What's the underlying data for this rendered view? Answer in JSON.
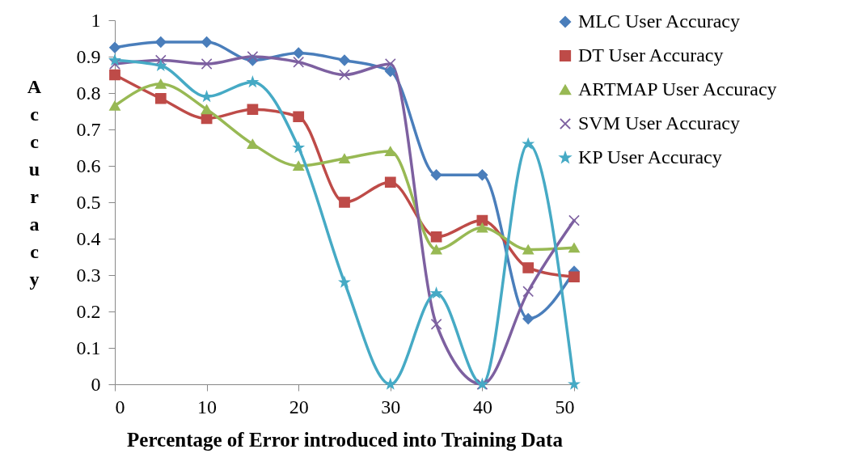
{
  "chart_data": {
    "type": "line",
    "xlabel": "Percentage of Error introduced into Training Data",
    "ylabel": "Accuracy",
    "x": [
      0,
      5,
      10,
      15,
      20,
      25,
      30,
      35,
      40,
      45,
      50
    ],
    "xlim": [
      0,
      50
    ],
    "xticks": [
      0,
      10,
      20,
      30,
      40,
      50
    ],
    "ylim": [
      0,
      1
    ],
    "yticks": [
      0,
      0.1,
      0.2,
      0.3,
      0.4,
      0.5,
      0.6,
      0.7,
      0.8,
      0.9,
      1
    ],
    "grid": false,
    "legend": "top right",
    "series": [
      {
        "name": "MLC User Accuracy",
        "color": "#4a7ebb",
        "marker": "diamond",
        "values": [
          0.925,
          0.94,
          0.94,
          0.89,
          0.91,
          0.89,
          0.86,
          0.575,
          0.575,
          0.18,
          0.31
        ]
      },
      {
        "name": "DT User Accuracy",
        "color": "#be4b48",
        "marker": "square",
        "values": [
          0.85,
          0.785,
          0.73,
          0.755,
          0.735,
          0.5,
          0.555,
          0.405,
          0.45,
          0.32,
          0.295
        ]
      },
      {
        "name": "ARTMAP User Accuracy",
        "color": "#98b954",
        "marker": "triangle",
        "values": [
          0.765,
          0.825,
          0.755,
          0.66,
          0.6,
          0.62,
          0.64,
          0.37,
          0.43,
          0.37,
          0.375
        ]
      },
      {
        "name": "SVM User Accuracy",
        "color": "#7d60a0",
        "marker": "cross",
        "values": [
          0.88,
          0.89,
          0.88,
          0.9,
          0.885,
          0.85,
          0.88,
          0.165,
          0,
          0.255,
          0.45
        ]
      },
      {
        "name": "KP User Accuracy",
        "color": "#46aac5",
        "marker": "star",
        "values": [
          0.89,
          0.875,
          0.79,
          0.83,
          0.65,
          0.28,
          0,
          0.25,
          0,
          0.66,
          0
        ]
      }
    ]
  }
}
